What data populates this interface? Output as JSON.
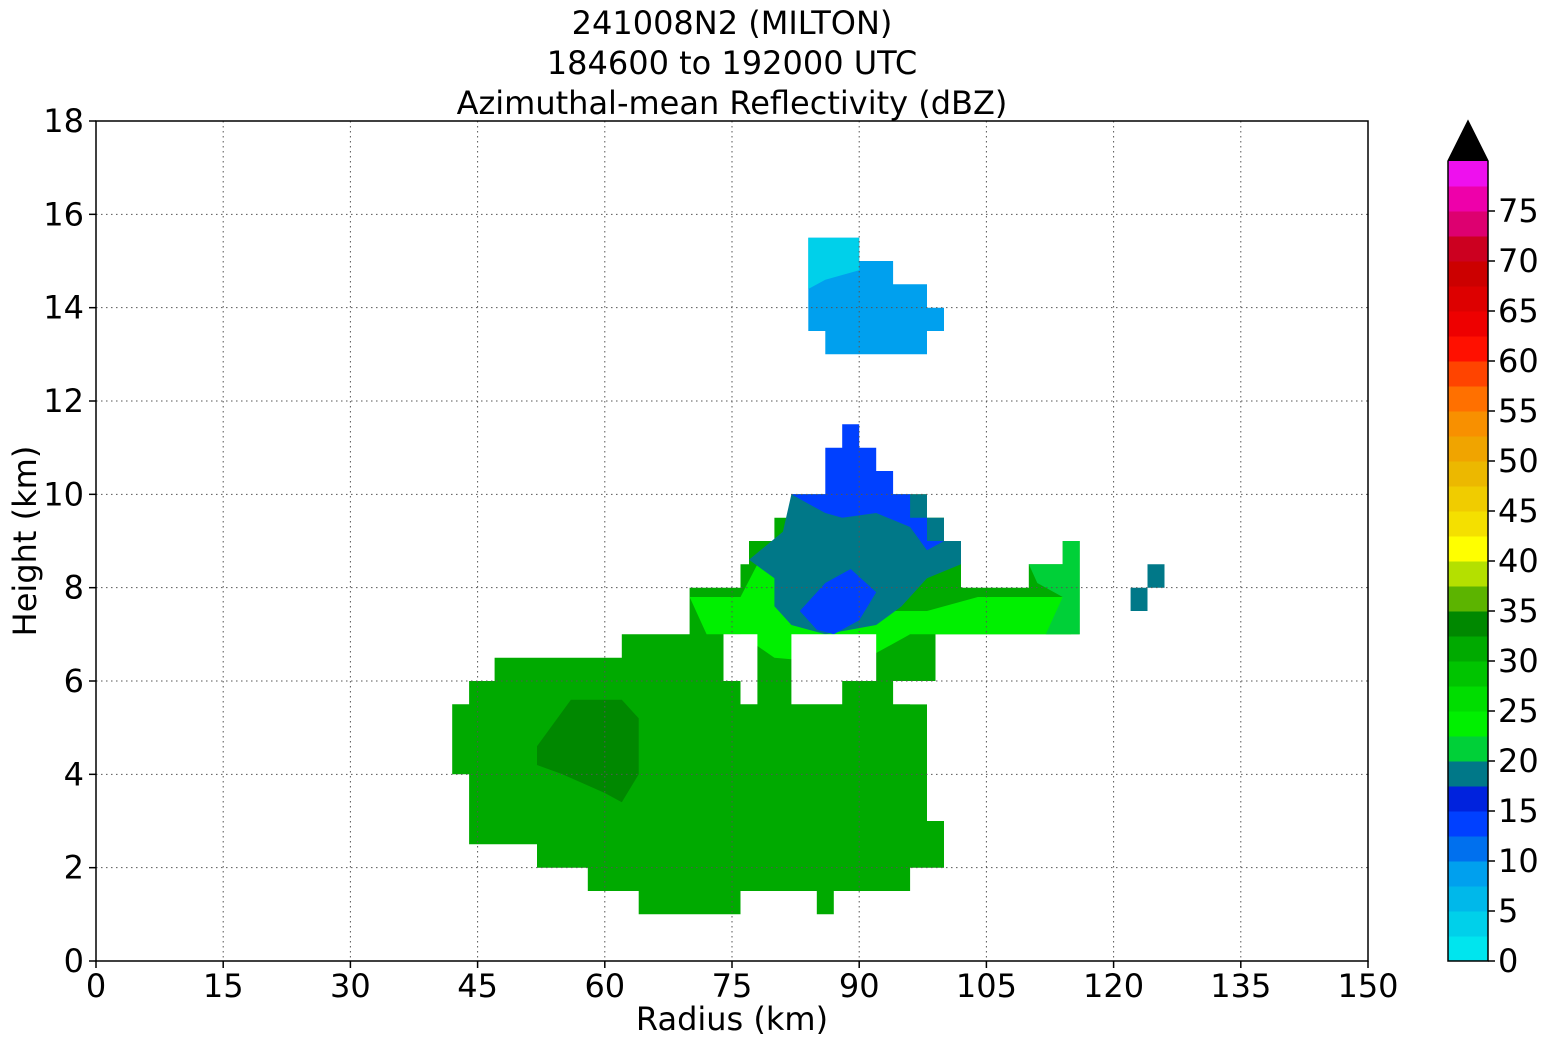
{
  "chart_data": {
    "type": "heatmap",
    "title": [
      "241008N2 (MILTON)",
      "184600 to 192000 UTC",
      "Azimuthal-mean Reflectivity (dBZ)"
    ],
    "xlabel": "Radius (km)",
    "ylabel": "Height (km)",
    "xlim": [
      0,
      150
    ],
    "ylim": [
      0,
      18
    ],
    "xticks": [
      0,
      15,
      30,
      45,
      60,
      75,
      90,
      105,
      120,
      135,
      150
    ],
    "yticks": [
      0,
      2,
      4,
      6,
      8,
      10,
      12,
      14,
      16,
      18
    ],
    "grid": true,
    "colorbar": {
      "min": 0,
      "max": 80,
      "step": 2.5,
      "ticks": [
        0,
        5,
        10,
        15,
        20,
        25,
        30,
        35,
        40,
        45,
        50,
        55,
        60,
        65,
        70,
        75
      ],
      "extend": "max",
      "colors": [
        "#00e5ee",
        "#00d0ea",
        "#00b8ea",
        "#00a0ee",
        "#0070ee",
        "#0040ff",
        "#0022dd",
        "#007888",
        "#00d038",
        "#00f000",
        "#00dd00",
        "#00c400",
        "#00aa00",
        "#008800",
        "#5cb400",
        "#b4e000",
        "#ffff00",
        "#f4e000",
        "#f0cc00",
        "#ecb800",
        "#f0a400",
        "#f89000",
        "#ff7000",
        "#ff4400",
        "#ff1000",
        "#ee0000",
        "#dd0000",
        "#cc0000",
        "#cc0020",
        "#dd0070",
        "#ee00aa",
        "#ee10ee",
        "#cc30dd",
        "#a050cc",
        "#7840a0",
        "#402050"
      ],
      "over_color": "#000000"
    },
    "regions": [
      {
        "dbz": 30,
        "poly": [
          [
            44,
            6
          ],
          [
            47,
            6
          ],
          [
            47,
            6.5
          ],
          [
            62,
            6.5
          ],
          [
            62,
            7
          ],
          [
            70,
            7
          ],
          [
            70,
            8
          ],
          [
            76,
            8
          ],
          [
            76,
            8.5
          ],
          [
            77,
            8.5
          ],
          [
            77,
            9
          ],
          [
            80,
            9
          ],
          [
            80,
            9.5
          ],
          [
            82,
            9.5
          ],
          [
            82,
            10
          ],
          [
            98,
            10
          ],
          [
            98,
            9.5
          ],
          [
            100,
            9.5
          ],
          [
            100,
            9
          ],
          [
            102,
            9
          ],
          [
            102,
            8
          ],
          [
            110,
            8
          ],
          [
            110,
            8.5
          ],
          [
            114,
            8.5
          ],
          [
            114,
            9
          ],
          [
            116,
            9
          ],
          [
            116,
            7
          ],
          [
            99,
            7
          ],
          [
            99,
            6
          ],
          [
            96,
            6
          ],
          [
            96,
            5.5
          ],
          [
            98,
            5.5
          ],
          [
            98,
            3
          ],
          [
            100,
            3
          ],
          [
            100,
            2
          ],
          [
            96,
            2
          ],
          [
            96,
            1.5
          ],
          [
            87,
            1.5
          ],
          [
            87,
            1
          ],
          [
            85,
            1
          ],
          [
            85,
            1.5
          ],
          [
            76,
            1.5
          ],
          [
            76,
            1
          ],
          [
            64,
            1
          ],
          [
            64,
            1.5
          ],
          [
            58,
            1.5
          ],
          [
            58,
            2
          ],
          [
            52,
            2
          ],
          [
            52,
            2.5
          ],
          [
            44,
            2.5
          ],
          [
            44,
            4
          ],
          [
            42,
            4
          ],
          [
            42,
            5.5
          ],
          [
            44,
            5.5
          ]
        ]
      },
      {
        "dbz": 22.5,
        "poly": [
          [
            70,
            7.8
          ],
          [
            76,
            7.8
          ],
          [
            78,
            8.5
          ],
          [
            80,
            9
          ],
          [
            84,
            8.5
          ],
          [
            86,
            8
          ],
          [
            92,
            7.5
          ],
          [
            98,
            7.5
          ],
          [
            104,
            7.8
          ],
          [
            110,
            7.8
          ],
          [
            115,
            7.8
          ],
          [
            115,
            7
          ],
          [
            96,
            7
          ],
          [
            92,
            6.6
          ],
          [
            86,
            6.4
          ],
          [
            80,
            6.5
          ],
          [
            76,
            7
          ],
          [
            72,
            7
          ]
        ]
      },
      {
        "dbz": 17.5,
        "poly": [
          [
            77,
            8.6
          ],
          [
            81,
            9.2
          ],
          [
            82,
            10
          ],
          [
            98,
            10
          ],
          [
            98,
            9.5
          ],
          [
            100,
            9.5
          ],
          [
            100,
            9
          ],
          [
            102,
            9
          ],
          [
            102,
            8.5
          ],
          [
            98,
            8.2
          ],
          [
            95,
            7.6
          ],
          [
            92,
            7.2
          ],
          [
            86,
            7
          ],
          [
            82,
            7.2
          ],
          [
            80,
            7.6
          ],
          [
            80,
            8.2
          ]
        ]
      },
      {
        "dbz": 20,
        "poly": [
          [
            110,
            8.5
          ],
          [
            114,
            8.5
          ],
          [
            114,
            9
          ],
          [
            116,
            9
          ],
          [
            116,
            7
          ],
          [
            112,
            7
          ],
          [
            114,
            7.8
          ],
          [
            111,
            8.1
          ]
        ]
      },
      {
        "dbz": 12.5,
        "poly": [
          [
            82,
            10
          ],
          [
            86,
            10
          ],
          [
            86,
            11
          ],
          [
            88,
            11
          ],
          [
            88,
            11.5
          ],
          [
            90,
            11.5
          ],
          [
            90,
            11
          ],
          [
            92,
            11
          ],
          [
            92,
            10.5
          ],
          [
            94,
            10.5
          ],
          [
            94,
            10
          ],
          [
            96,
            10
          ],
          [
            96,
            9.5
          ],
          [
            98,
            9.5
          ],
          [
            98,
            9
          ],
          [
            100,
            9
          ],
          [
            98,
            8.8
          ],
          [
            96,
            9.3
          ],
          [
            92,
            9.6
          ],
          [
            88,
            9.5
          ],
          [
            86,
            9.6
          ],
          [
            84,
            9.8
          ]
        ]
      },
      {
        "dbz": 12.5,
        "poly": [
          [
            83,
            7.5
          ],
          [
            86,
            8.1
          ],
          [
            89,
            8.4
          ],
          [
            92,
            7.9
          ],
          [
            90,
            7.3
          ],
          [
            87,
            7
          ],
          [
            85,
            7.1
          ]
        ]
      },
      {
        "dbz": 17.5,
        "poly": [
          [
            122,
            7.5
          ],
          [
            124,
            7.5
          ],
          [
            124,
            8
          ],
          [
            126,
            8
          ],
          [
            126,
            8.5
          ],
          [
            124,
            8.5
          ],
          [
            124,
            8
          ],
          [
            122,
            8
          ]
        ]
      },
      {
        "dbz": 35,
        "poly": [
          [
            56,
            4.8
          ],
          [
            59,
            5.2
          ],
          [
            62,
            5
          ],
          [
            62,
            4.5
          ],
          [
            60,
            4.2
          ],
          [
            57,
            4.4
          ]
        ]
      },
      {
        "dbz": 32.5,
        "poly": [
          [
            52,
            4.6
          ],
          [
            56,
            5.6
          ],
          [
            62,
            5.6
          ],
          [
            64,
            5.2
          ],
          [
            64,
            4
          ],
          [
            62,
            3.4
          ],
          [
            60,
            3.6
          ],
          [
            55,
            4
          ],
          [
            52,
            4.2
          ]
        ]
      },
      {
        "dbz": 7.5,
        "poly": [
          [
            84,
            15.5
          ],
          [
            90,
            15.5
          ],
          [
            90,
            15
          ],
          [
            94,
            15
          ],
          [
            94,
            14.5
          ],
          [
            98,
            14.5
          ],
          [
            98,
            14
          ],
          [
            100,
            14
          ],
          [
            100,
            13.5
          ],
          [
            98,
            13.5
          ],
          [
            98,
            13
          ],
          [
            86,
            13
          ],
          [
            86,
            13.5
          ],
          [
            84,
            13.5
          ]
        ]
      },
      {
        "dbz": 2.5,
        "poly": [
          [
            84,
            15.5
          ],
          [
            90,
            15.5
          ],
          [
            90,
            14.8
          ],
          [
            86,
            14.6
          ],
          [
            84,
            14.4
          ]
        ]
      }
    ],
    "holes": [
      {
        "poly": [
          [
            74,
            7
          ],
          [
            78,
            7
          ],
          [
            78,
            6
          ],
          [
            82,
            6
          ],
          [
            82,
            7
          ],
          [
            92,
            7
          ],
          [
            92,
            6
          ],
          [
            98,
            6
          ],
          [
            98,
            5.5
          ],
          [
            94,
            5.5
          ],
          [
            94,
            6
          ],
          [
            88,
            6
          ],
          [
            88,
            5.5
          ],
          [
            82,
            5.5
          ],
          [
            82,
            6
          ],
          [
            78,
            6
          ],
          [
            78,
            5.5
          ],
          [
            76,
            5.5
          ],
          [
            76,
            6
          ],
          [
            74,
            6
          ]
        ]
      }
    ]
  },
  "colors": {
    "grid": "#555555",
    "axis": "#000000"
  }
}
